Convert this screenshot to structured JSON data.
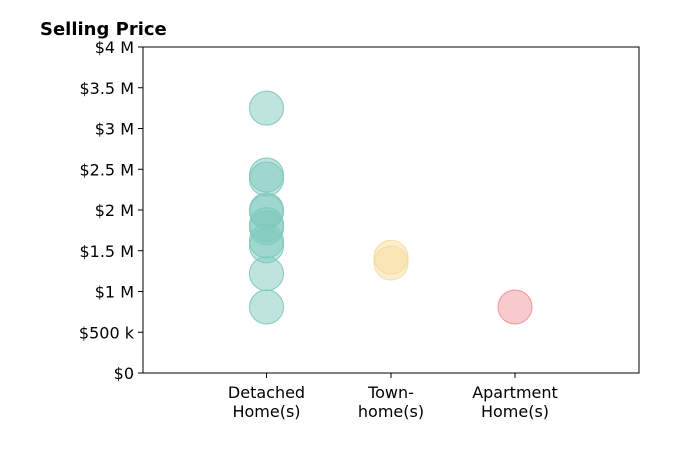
{
  "chart_data": {
    "type": "scatter",
    "title": "Selling Price",
    "xlabel": "",
    "ylabel": "",
    "ylim": [
      0,
      4000000
    ],
    "grid": false,
    "yticks": [
      {
        "value": 0,
        "label": "$0"
      },
      {
        "value": 500000,
        "label": "$500 k"
      },
      {
        "value": 1000000,
        "label": "$1 M"
      },
      {
        "value": 1500000,
        "label": "$1.5 M"
      },
      {
        "value": 2000000,
        "label": "$2 M"
      },
      {
        "value": 2500000,
        "label": "$2.5 M"
      },
      {
        "value": 3000000,
        "label": "$3 M"
      },
      {
        "value": 3500000,
        "label": "$3.5 M"
      },
      {
        "value": 4000000,
        "label": "$4 M"
      }
    ],
    "categories": [
      {
        "lines": [
          "Detached",
          "Home(s)"
        ],
        "color": "#7fc9bd"
      },
      {
        "lines": [
          "Town-",
          "home(s)"
        ],
        "color": "#f5dda0"
      },
      {
        "lines": [
          "Apartment",
          "Home(s)"
        ],
        "color": "#f3959c"
      }
    ],
    "series": [
      {
        "category": 0,
        "values": [
          3250000,
          2430000,
          2380000,
          2000000,
          1980000,
          1820000,
          1780000,
          1620000,
          1560000,
          1220000,
          810000
        ]
      },
      {
        "category": 1,
        "values": [
          1420000,
          1350000
        ]
      },
      {
        "category": 2,
        "values": [
          810000
        ]
      }
    ]
  }
}
